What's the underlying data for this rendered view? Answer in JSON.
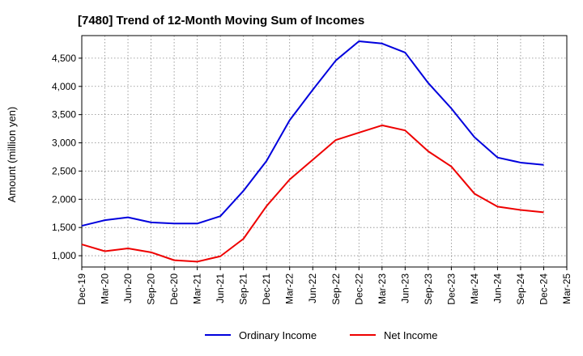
{
  "chart_data": {
    "type": "line",
    "title": "[7480]  Trend of 12-Month Moving Sum of Incomes",
    "ylabel": "Amount (million yen)",
    "xlabel": "",
    "ylim": [
      800,
      4900
    ],
    "yticks": [
      1000,
      1500,
      2000,
      2500,
      3000,
      3500,
      4000,
      4500
    ],
    "ytick_labels": [
      "1,000",
      "1,500",
      "2,000",
      "2,500",
      "3,000",
      "3,500",
      "4,000",
      "4,500"
    ],
    "grid": true,
    "legend_position": "bottom",
    "categories": [
      "Dec-19",
      "Mar-20",
      "Jun-20",
      "Sep-20",
      "Dec-20",
      "Mar-21",
      "Jun-21",
      "Sep-21",
      "Dec-21",
      "Mar-22",
      "Jun-22",
      "Sep-22",
      "Dec-22",
      "Mar-23",
      "Jun-23",
      "Sep-23",
      "Dec-23",
      "Mar-24",
      "Jun-24",
      "Sep-24",
      "Dec-24",
      "Mar-25"
    ],
    "series": [
      {
        "name": "Ordinary Income",
        "color": "#0000dd",
        "values": [
          1530,
          1630,
          1680,
          1590,
          1570,
          1570,
          1700,
          2150,
          2680,
          3400,
          3940,
          4460,
          4800,
          4760,
          4600,
          4060,
          3610,
          3100,
          2740,
          2650,
          2610,
          null
        ]
      },
      {
        "name": "Net Income",
        "color": "#ee0000",
        "values": [
          1200,
          1080,
          1130,
          1060,
          920,
          895,
          990,
          1300,
          1880,
          2350,
          2700,
          3050,
          3180,
          3310,
          3220,
          2850,
          2580,
          2100,
          1870,
          1810,
          1770,
          null
        ]
      }
    ]
  }
}
